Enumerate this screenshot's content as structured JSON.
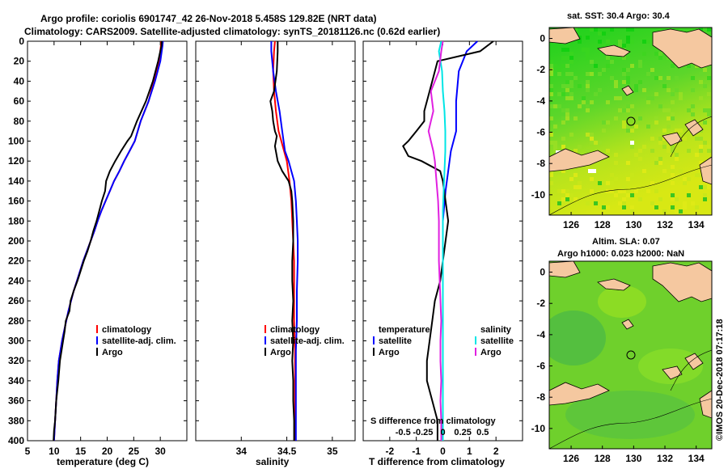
{
  "title": {
    "line1": "Argo profile: coriolis 6901747_42 26-Nov-2018 5.458S 129.82E (NRT data)",
    "line2": "Climatology: CARS2009. Satellite-adjusted climatology: synTS_20181126.nc (0.62d earlier)"
  },
  "colors": {
    "climatology": "#ff0000",
    "satellite": "#0000ff",
    "argo": "#000000",
    "sat_salinity": "#00e5e5",
    "argo_salinity": "#e020e0",
    "land": "#f5c8a0",
    "sea_green": "#33cc33"
  },
  "chart_data": [
    {
      "type": "line",
      "id": "temperature",
      "xlabel": "temperature (deg C)",
      "xlim": [
        5,
        35
      ],
      "xticks": [
        5,
        10,
        15,
        20,
        25,
        30
      ],
      "ylim": [
        0,
        400
      ],
      "yticks": [
        0,
        20,
        40,
        60,
        80,
        100,
        120,
        140,
        160,
        180,
        200,
        220,
        240,
        260,
        280,
        300,
        320,
        340,
        360,
        380,
        400
      ],
      "legend": [
        "climatology",
        "satellite-adj. clim.",
        "Argo"
      ],
      "series": [
        {
          "name": "climatology",
          "color": "#ff0000",
          "x": [
            30.2,
            30.1,
            29.8,
            28.8,
            27.8,
            26.3,
            25.2,
            24.2,
            23.2,
            22.3,
            21.3,
            20.5,
            19.7,
            18.9,
            18.2,
            17.6,
            16.9,
            16.2,
            15.5,
            14.9,
            14.3,
            13.7,
            13.2,
            12.7,
            12.3,
            11.9,
            11.5,
            11.2,
            10.9,
            10.6,
            10.4,
            10.2,
            10.0
          ],
          "y": [
            0,
            5,
            20,
            40,
            60,
            80,
            100,
            110,
            120,
            130,
            140,
            150,
            160,
            170,
            180,
            190,
            200,
            210,
            220,
            230,
            240,
            250,
            260,
            270,
            280,
            290,
            300,
            310,
            320,
            340,
            360,
            380,
            400
          ]
        },
        {
          "name": "satellite-adj. clim.",
          "color": "#0000ff",
          "x": [
            30.5,
            30.4,
            30.0,
            29.0,
            27.8,
            26.3,
            25.2,
            24.2,
            23.2,
            22.3,
            21.3,
            20.5,
            19.7,
            18.9,
            18.2,
            17.6,
            16.9,
            16.2,
            15.5,
            14.9,
            14.3,
            13.7,
            13.2,
            12.7,
            12.3,
            11.9,
            11.5,
            11.2,
            10.9,
            10.6,
            10.4,
            10.2,
            10.0
          ],
          "y": [
            0,
            5,
            20,
            40,
            60,
            80,
            100,
            110,
            120,
            130,
            140,
            150,
            160,
            170,
            180,
            190,
            200,
            210,
            220,
            230,
            240,
            250,
            260,
            270,
            280,
            290,
            300,
            310,
            320,
            340,
            360,
            380,
            400
          ]
        },
        {
          "name": "Argo",
          "color": "#000000",
          "x": [
            30.3,
            30.2,
            29.6,
            28.6,
            27.3,
            25.6,
            24.5,
            23.8,
            22.6,
            21.5,
            20.5,
            19.8,
            19.6,
            19.0,
            18.5,
            18.0,
            17.4,
            16.9,
            16.3,
            15.6,
            15.0,
            14.4,
            13.7,
            13.1,
            12.9,
            12.2,
            12.0,
            11.7,
            11.1,
            10.8,
            10.4,
            10.2,
            10.0,
            9.9
          ],
          "y": [
            0,
            5,
            20,
            40,
            60,
            80,
            95,
            100,
            110,
            120,
            130,
            140,
            150,
            160,
            170,
            180,
            190,
            200,
            210,
            220,
            230,
            240,
            250,
            260,
            270,
            280,
            290,
            300,
            320,
            340,
            360,
            380,
            390,
            400
          ]
        }
      ]
    },
    {
      "type": "line",
      "id": "salinity",
      "xlabel": "salinity",
      "xlim": [
        33.5,
        35.25
      ],
      "xticks": [
        34,
        34.5,
        35
      ],
      "ylim": [
        0,
        400
      ],
      "legend": [
        "climatology",
        "satellite-adj. clim.",
        "Argo"
      ],
      "series": [
        {
          "name": "climatology",
          "color": "#ff0000",
          "x": [
            34.37,
            34.36,
            34.35,
            34.36,
            34.38,
            34.41,
            34.44,
            34.47,
            34.5,
            34.53,
            34.55,
            34.56,
            34.57,
            34.58,
            34.58,
            34.58,
            34.59,
            34.59,
            34.59,
            34.59
          ],
          "y": [
            0,
            10,
            30,
            50,
            70,
            90,
            100,
            110,
            120,
            140,
            160,
            180,
            200,
            220,
            250,
            280,
            310,
            340,
            370,
            400
          ]
        },
        {
          "name": "satellite-adj. clim.",
          "color": "#0000ff",
          "x": [
            34.33,
            34.33,
            34.35,
            34.38,
            34.42,
            34.45,
            34.48,
            34.52,
            34.55,
            34.58,
            34.6,
            34.61,
            34.62,
            34.62,
            34.61,
            34.61,
            34.6,
            34.6,
            34.6,
            34.6
          ],
          "y": [
            0,
            10,
            30,
            50,
            70,
            90,
            110,
            120,
            130,
            140,
            160,
            180,
            200,
            220,
            250,
            280,
            310,
            340,
            370,
            400
          ]
        },
        {
          "name": "Argo",
          "color": "#000000",
          "x": [
            34.4,
            34.4,
            34.39,
            34.36,
            34.32,
            34.34,
            34.35,
            34.37,
            34.39,
            34.37,
            34.4,
            34.45,
            34.52,
            34.55,
            34.56,
            34.57,
            34.57,
            34.56,
            34.56,
            34.57,
            34.56,
            34.57,
            34.56,
            34.57,
            34.57,
            34.58,
            34.58
          ],
          "y": [
            0,
            10,
            30,
            50,
            60,
            70,
            80,
            90,
            95,
            105,
            120,
            130,
            140,
            150,
            160,
            180,
            200,
            220,
            240,
            260,
            280,
            300,
            320,
            340,
            360,
            380,
            400
          ]
        }
      ]
    },
    {
      "type": "line",
      "id": "difference",
      "xlabel": "T difference from climatology",
      "xlim": [
        -3,
        3
      ],
      "xticks": [
        -2,
        -1,
        0,
        1,
        2
      ],
      "s_xlabel": "S difference from climatology",
      "s_xticks": [
        "-0.5",
        "-0.25",
        "0",
        "0.25",
        "0.5"
      ],
      "ylim": [
        0,
        400
      ],
      "legend": {
        "temperature_header": "temperature",
        "salinity_header": "salinity",
        "entries": [
          "satellite",
          "Argo",
          "satellite",
          "Argo"
        ]
      },
      "series": [
        {
          "name": "T satellite",
          "color": "#0000ff",
          "x": [
            1.3,
            0.9,
            0.6,
            0.5,
            0.5,
            0.3,
            0.2,
            0.1,
            0.0,
            0.0,
            0.0,
            0.0,
            0.0,
            0.0,
            0.0,
            0.0,
            0.0,
            0.0,
            0.0,
            0.0,
            0.0
          ],
          "y": [
            0,
            10,
            30,
            60,
            90,
            110,
            130,
            150,
            180,
            200,
            220,
            240,
            260,
            280,
            300,
            320,
            340,
            360,
            380,
            390,
            400
          ]
        },
        {
          "name": "T Argo",
          "color": "#000000",
          "x": [
            1.9,
            1.4,
            -0.2,
            -0.4,
            -0.5,
            -0.6,
            -0.7,
            -0.7,
            -1.0,
            -1.3,
            -1.5,
            -1.3,
            -0.8,
            -0.1,
            0.0,
            0.1,
            0.2,
            0.1,
            0.0,
            -0.1,
            -0.3,
            -0.4,
            -0.5,
            -0.6,
            -0.6,
            -0.4,
            -0.2,
            -0.2
          ],
          "y": [
            0,
            10,
            20,
            40,
            50,
            60,
            70,
            80,
            90,
            100,
            105,
            115,
            120,
            130,
            140,
            160,
            180,
            200,
            220,
            240,
            260,
            280,
            300,
            320,
            340,
            360,
            380,
            400
          ]
        },
        {
          "name": "S satellite",
          "color": "#00e5e5",
          "x": [
            -0.02,
            -0.05,
            -0.01,
            0.0,
            0.02,
            0.03,
            0.03,
            0.02,
            0.01,
            0.0,
            0.0,
            0.0,
            0.0,
            0.0,
            0.0,
            0.0,
            0.0,
            0.0,
            0.0,
            0.0
          ],
          "y": [
            0,
            10,
            30,
            50,
            70,
            90,
            110,
            130,
            150,
            170,
            190,
            210,
            240,
            270,
            300,
            330,
            350,
            370,
            390,
            400
          ]
        },
        {
          "name": "S Argo",
          "color": "#e020e0",
          "x": [
            0.0,
            -0.02,
            -0.05,
            -0.15,
            -0.12,
            -0.15,
            -0.18,
            -0.15,
            -0.12,
            -0.1,
            -0.08,
            -0.06,
            -0.05,
            -0.05,
            -0.05,
            -0.04,
            -0.03,
            -0.02,
            -0.03,
            -0.03,
            -0.02,
            -0.03,
            -0.02,
            -0.02
          ],
          "y": [
            0,
            10,
            30,
            50,
            70,
            80,
            90,
            100,
            110,
            120,
            140,
            160,
            180,
            200,
            220,
            240,
            260,
            280,
            300,
            320,
            340,
            360,
            380,
            400
          ]
        }
      ]
    }
  ],
  "maps": {
    "sst": {
      "title": "sat. SST: 30.4 Argo: 30.4",
      "xticks": [
        "126",
        "128",
        "130",
        "132",
        "134"
      ],
      "yticks": [
        "0",
        "-2",
        "-4",
        "-6",
        "-8",
        "-10"
      ]
    },
    "sla": {
      "title_line1": "Altim. SLA: 0.07",
      "title_line2": "Argo h1000: 0.023 h2000: NaN",
      "xticks": [
        "126",
        "128",
        "130",
        "132",
        "134"
      ],
      "yticks": [
        "0",
        "-2",
        "-4",
        "-6",
        "-8",
        "-10"
      ]
    }
  },
  "credit": "©IMOS 20-Dec-2018 07:17:18"
}
